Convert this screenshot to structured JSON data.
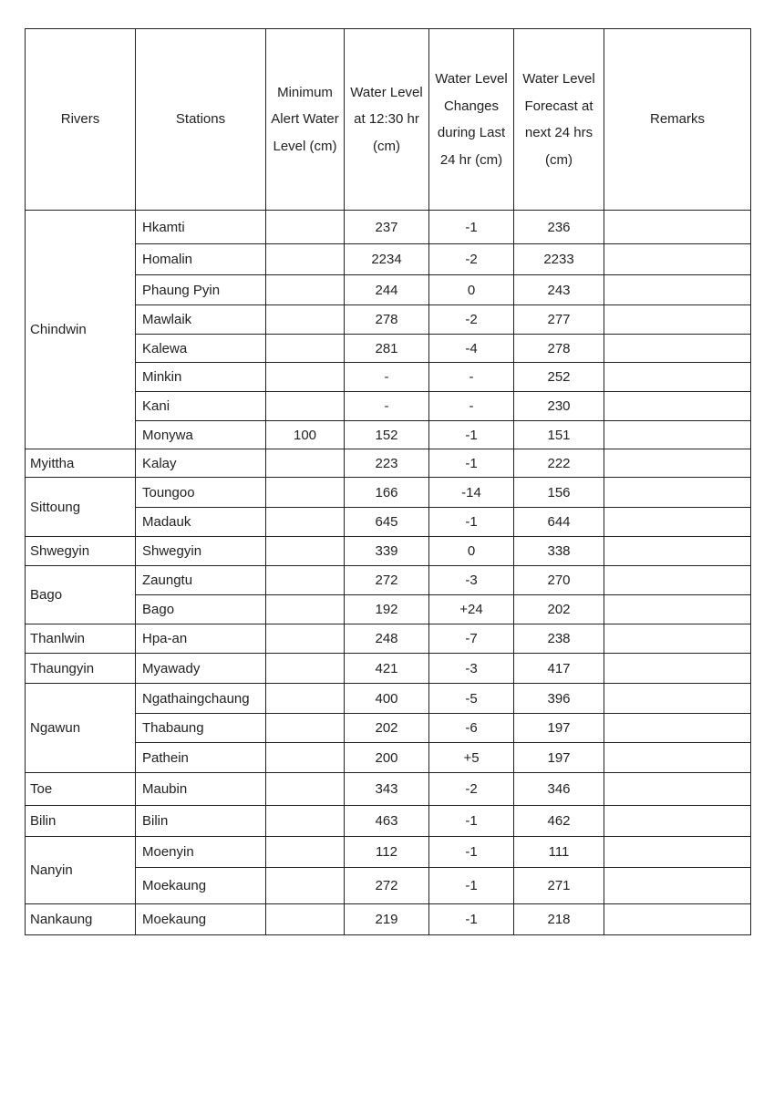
{
  "headers": [
    "Rivers",
    "Stations",
    "Minimum Alert Water Level (cm)",
    "Water Level at 12:30 hr (cm)",
    "Water Level Changes during Last 24 hr (cm)",
    "Water Level Forecast at next 24 hrs (cm)",
    "Remarks"
  ],
  "groups": [
    {
      "river": "Chindwin",
      "stations": [
        {
          "station": "Hkamti",
          "alert": "",
          "level": "237",
          "change": "-1",
          "forecast": "236",
          "remarks": ""
        },
        {
          "station": "Homalin",
          "alert": "",
          "level": "2234",
          "change": "-2",
          "forecast": "2233",
          "remarks": ""
        },
        {
          "station": "Phaung Pyin",
          "alert": "",
          "level": "244",
          "change": "0",
          "forecast": "243",
          "remarks": ""
        },
        {
          "station": "Mawlaik",
          "alert": "",
          "level": "278",
          "change": "-2",
          "forecast": "277",
          "remarks": ""
        },
        {
          "station": "Kalewa",
          "alert": "",
          "level": "281",
          "change": "-4",
          "forecast": "278",
          "remarks": ""
        },
        {
          "station": "Minkin",
          "alert": "",
          "level": "-",
          "change": "-",
          "forecast": "252",
          "remarks": ""
        },
        {
          "station": "Kani",
          "alert": "",
          "level": "-",
          "change": "-",
          "forecast": "230",
          "remarks": ""
        },
        {
          "station": "Monywa",
          "alert": "100",
          "level": "152",
          "change": "-1",
          "forecast": "151",
          "remarks": ""
        }
      ]
    },
    {
      "river": "Myittha",
      "stations": [
        {
          "station": "Kalay",
          "alert": "",
          "level": "223",
          "change": "-1",
          "forecast": "222",
          "remarks": ""
        }
      ]
    },
    {
      "river": "Sittoung",
      "stations": [
        {
          "station": "Toungoo",
          "alert": "",
          "level": "166",
          "change": "-14",
          "forecast": "156",
          "remarks": ""
        },
        {
          "station": "Madauk",
          "alert": "",
          "level": "645",
          "change": "-1",
          "forecast": "644",
          "remarks": ""
        }
      ]
    },
    {
      "river": "Shwegyin",
      "stations": [
        {
          "station": "Shwegyin",
          "alert": "",
          "level": "339",
          "change": "0",
          "forecast": "338",
          "remarks": ""
        }
      ]
    },
    {
      "river": "Bago",
      "stations": [
        {
          "station": "Zaungtu",
          "alert": "",
          "level": "272",
          "change": "-3",
          "forecast": "270",
          "remarks": ""
        },
        {
          "station": "Bago",
          "alert": "",
          "level": "192",
          "change": "+24",
          "forecast": "202",
          "remarks": ""
        }
      ]
    },
    {
      "river": "Thanlwin",
      "stations": [
        {
          "station": "Hpa-an",
          "alert": "",
          "level": "248",
          "change": "-7",
          "forecast": "238",
          "remarks": ""
        }
      ]
    },
    {
      "river": "Thaungyin",
      "stations": [
        {
          "station": "Myawady",
          "alert": "",
          "level": "421",
          "change": "-3",
          "forecast": "417",
          "remarks": ""
        }
      ]
    },
    {
      "river": "Ngawun",
      "stations": [
        {
          "station": "Ngathaingchaung",
          "alert": "",
          "level": "400",
          "change": "-5",
          "forecast": "396",
          "remarks": ""
        },
        {
          "station": "Thabaung",
          "alert": "",
          "level": "202",
          "change": "-6",
          "forecast": "197",
          "remarks": ""
        },
        {
          "station": "Pathein",
          "alert": "",
          "level": "200",
          "change": "+5",
          "forecast": "197",
          "remarks": ""
        }
      ]
    },
    {
      "river": "Toe",
      "stations": [
        {
          "station": "Maubin",
          "alert": "",
          "level": "343",
          "change": "-2",
          "forecast": "346",
          "remarks": ""
        }
      ]
    },
    {
      "river": "Bilin",
      "stations": [
        {
          "station": "Bilin",
          "alert": "",
          "level": "463",
          "change": "-1",
          "forecast": "462",
          "remarks": ""
        }
      ]
    },
    {
      "river": "Nanyin",
      "stations": [
        {
          "station": "Moenyin",
          "alert": "",
          "level": "112",
          "change": "-1",
          "forecast": "111",
          "remarks": ""
        },
        {
          "station": "Moekaung",
          "alert": "",
          "level": "272",
          "change": "-1",
          "forecast": "271",
          "remarks": ""
        }
      ]
    },
    {
      "river": "Nankaung",
      "stations": [
        {
          "station": "Moekaung",
          "alert": "",
          "level": "219",
          "change": "-1",
          "forecast": "218",
          "remarks": ""
        }
      ]
    }
  ]
}
